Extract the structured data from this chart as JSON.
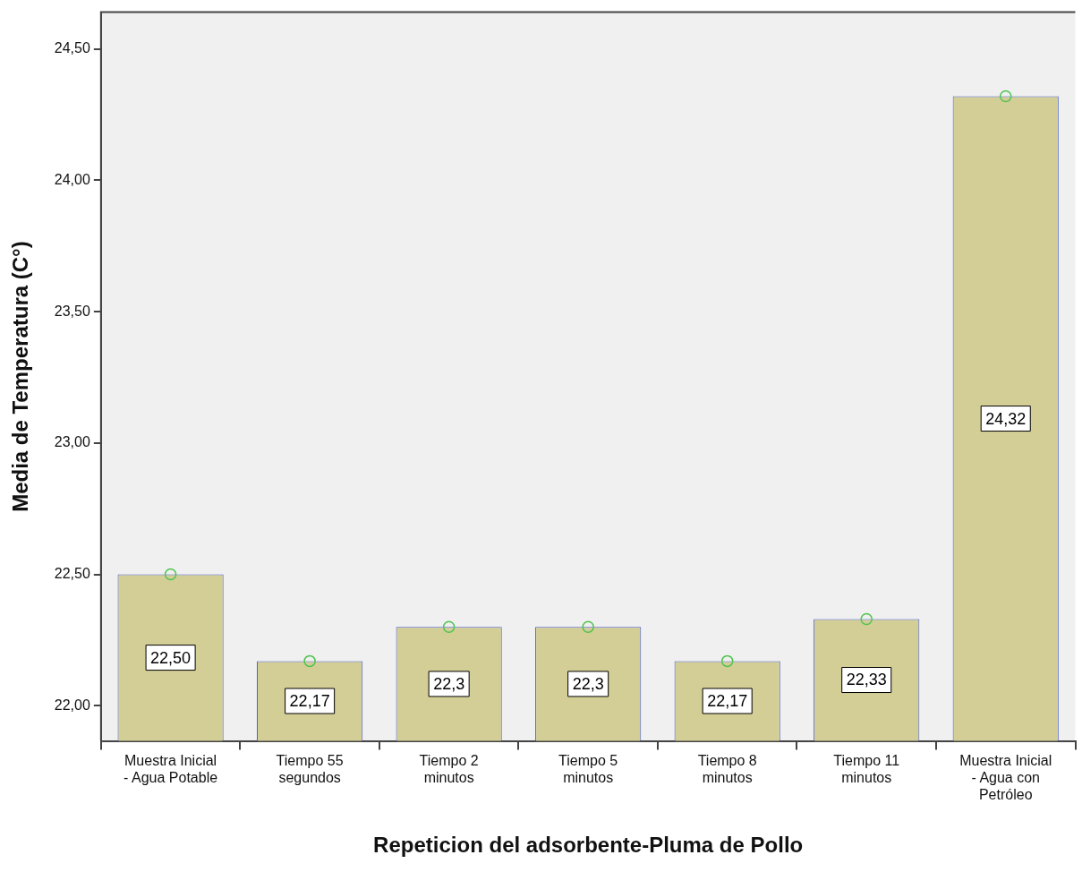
{
  "chart_data": {
    "type": "bar",
    "xlabel": "Repeticion del adsorbente-Pluma de Pollo",
    "ylabel": "Media de Temperatura (C°)",
    "categories": [
      "Muestra Inicial - Agua Potable",
      "Tiempo 55 segundos",
      "Tiempo 2 minutos",
      "Tiempo 5 minutos",
      "Tiempo 8 minutos",
      "Tiempo 11 minutos",
      "Muestra Inicial - Agua con Petróleo"
    ],
    "series": [
      {
        "color": "#d3cd96",
        "values": [
          22.5,
          22.17,
          22.3,
          22.3,
          22.17,
          22.33,
          24.32
        ],
        "value_labels": [
          "22,50",
          "22,17",
          "22,3",
          "22,3",
          "22,17",
          "22,33",
          "24,32"
        ]
      },
      {
        "type": "scatter",
        "color": "#4fc44f",
        "marker": "circle",
        "x": [
          "Muestra Inicial - Agua Potable",
          "Tiempo 55 segundos",
          "Tiempo 2 minutos",
          "Tiempo 5 minutos",
          "Tiempo 8 minutos",
          "Tiempo 11 minutos",
          "Muestra Inicial - Agua con Petróleo"
        ],
        "values": [
          22.5,
          22.17,
          22.3,
          22.3,
          22.17,
          22.33,
          24.32
        ]
      }
    ],
    "ylim": [
      21.866,
      24.64
    ],
    "yticks": [
      {
        "value": 22,
        "label": "22,00"
      },
      {
        "value": 22.5,
        "label": "22,50"
      },
      {
        "value": 23,
        "label": "23,00"
      },
      {
        "value": 23.5,
        "label": "23,50"
      },
      {
        "value": 24,
        "label": "24,00"
      },
      {
        "value": 24.5,
        "label": "24,50"
      }
    ],
    "grid": false,
    "legend": false
  }
}
